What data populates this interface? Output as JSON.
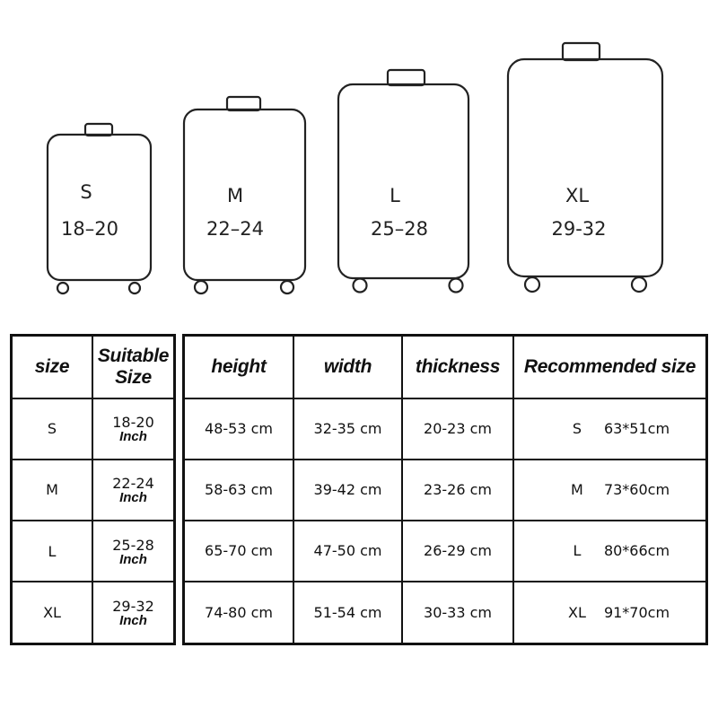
{
  "suitcases": [
    {
      "size": "S",
      "range": "18–20"
    },
    {
      "size": "M",
      "range": "22–24"
    },
    {
      "size": "L",
      "range": "25–28"
    },
    {
      "size": "XL",
      "range": "29-32"
    }
  ],
  "left_table": {
    "headers": [
      "size",
      "Suitable Size"
    ],
    "header_lines": [
      "Suitable",
      "Size"
    ],
    "unit": "Inch",
    "rows": [
      {
        "size": "S",
        "range": "18-20"
      },
      {
        "size": "M",
        "range": "22-24"
      },
      {
        "size": "L",
        "range": "25-28"
      },
      {
        "size": "XL",
        "range": "29-32"
      }
    ]
  },
  "right_table": {
    "headers": [
      "height",
      "width",
      "thickness",
      "Recommended size"
    ],
    "rows": [
      {
        "height": "48-53 cm",
        "width": "32-35 cm",
        "thickness": "20-23 cm",
        "rec_size": "S",
        "rec_dim": "63*51cm"
      },
      {
        "height": "58-63 cm",
        "width": "39-42 cm",
        "thickness": "23-26 cm",
        "rec_size": "M",
        "rec_dim": "73*60cm"
      },
      {
        "height": "65-70 cm",
        "width": "47-50 cm",
        "thickness": "26-29 cm",
        "rec_size": "L",
        "rec_dim": "80*66cm"
      },
      {
        "height": "74-80 cm",
        "width": "51-54 cm",
        "thickness": "30-33 cm",
        "rec_size": "XL",
        "rec_dim": "91*70cm"
      }
    ]
  }
}
